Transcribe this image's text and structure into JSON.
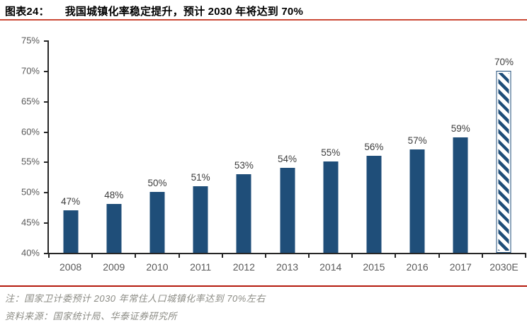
{
  "title": {
    "prefix": "图表24：",
    "text": "我国城镇化率稳定提升，预计 2030 年将达到 70%"
  },
  "colors": {
    "bar": "#1F4E79",
    "accent_rule_top": "#cb4a37",
    "accent_rule_bottom": "#b41a0d",
    "axis": "#262626",
    "axis_tick_label": "#595959",
    "data_label": "#3d3d3d",
    "note_text": "#8b8b84"
  },
  "chart_data": {
    "type": "bar",
    "title": "我国城镇化率稳定提升，预计 2030 年将达到 70%",
    "categories": [
      "2008",
      "2009",
      "2010",
      "2011",
      "2012",
      "2013",
      "2014",
      "2015",
      "2016",
      "2017",
      "2030E"
    ],
    "values": [
      47,
      48,
      50,
      51,
      53,
      54,
      55,
      56,
      57,
      59,
      70
    ],
    "data_labels": [
      "47%",
      "48%",
      "50%",
      "51%",
      "53%",
      "54%",
      "55%",
      "56%",
      "57%",
      "59%",
      "70%"
    ],
    "hatched_categories": [
      "2030E"
    ],
    "xlabel": "",
    "ylabel": "",
    "ylim": [
      40,
      75
    ],
    "ytick_step": 5,
    "ytick_labels": [
      "40%",
      "45%",
      "50%",
      "55%",
      "60%",
      "65%",
      "70%",
      "75%"
    ],
    "grid": false,
    "legend": false
  },
  "notes": {
    "note": "注：国家卫计委预计 2030 年常住人口城镇化率达到 70%左右",
    "source": "资料来源：国家统计局、华泰证券研究所"
  }
}
